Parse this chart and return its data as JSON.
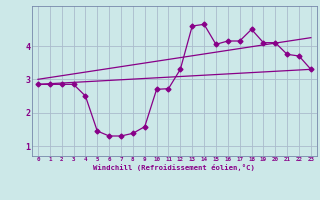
{
  "xlabel": "Windchill (Refroidissement éolien,°C)",
  "bg_color": "#cce8e8",
  "grid_color": "#aabbcc",
  "line_color": "#880088",
  "xlim": [
    -0.5,
    23.5
  ],
  "ylim": [
    0.7,
    5.2
  ],
  "xticks": [
    0,
    1,
    2,
    3,
    4,
    5,
    6,
    7,
    8,
    9,
    10,
    11,
    12,
    13,
    14,
    15,
    16,
    17,
    18,
    19,
    20,
    21,
    22,
    23
  ],
  "yticks": [
    1,
    2,
    3,
    4
  ],
  "data_line": {
    "x": [
      0,
      1,
      2,
      3,
      4,
      5,
      6,
      7,
      8,
      9,
      10,
      11,
      12,
      13,
      14,
      15,
      16,
      17,
      18,
      19,
      20,
      21,
      22,
      23
    ],
    "y": [
      2.85,
      2.85,
      2.85,
      2.85,
      2.5,
      1.45,
      1.3,
      1.3,
      1.38,
      1.58,
      2.7,
      2.72,
      3.3,
      4.6,
      4.65,
      4.05,
      4.15,
      4.15,
      4.5,
      4.1,
      4.1,
      3.75,
      3.7,
      3.3
    ]
  },
  "reg_line1": {
    "x": [
      0,
      23
    ],
    "y": [
      2.85,
      3.3
    ]
  },
  "reg_line2": {
    "x": [
      0,
      23
    ],
    "y": [
      3.0,
      4.25
    ]
  }
}
